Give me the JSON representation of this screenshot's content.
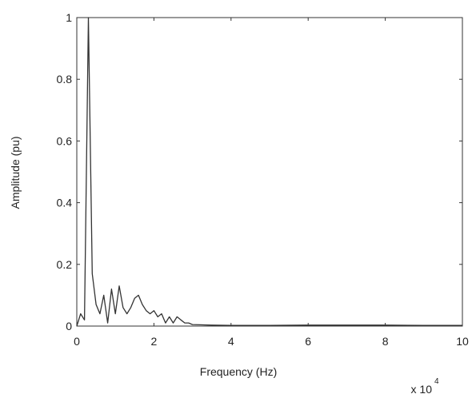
{
  "chart_data": {
    "type": "line",
    "title": "",
    "xlabel": "Frequency (Hz)",
    "ylabel": "Amplitude (pu)",
    "x_multiplier_label": "x 10",
    "x_multiplier_exponent": "4",
    "xlim": [
      0,
      10
    ],
    "ylim": [
      0,
      1
    ],
    "xticks": [
      0,
      2,
      4,
      6,
      8,
      10
    ],
    "yticks": [
      0,
      0.2,
      0.4,
      0.6,
      0.8,
      1
    ],
    "xtick_labels": [
      "0",
      "2",
      "4",
      "6",
      "8",
      "10"
    ],
    "ytick_labels": [
      "0",
      "0.2",
      "0.4",
      "0.6",
      "0.8",
      "1"
    ],
    "grid": false,
    "legend": "none",
    "line_color": "#333333",
    "series": [
      {
        "x": [
          0,
          0.1,
          0.2,
          0.3,
          0.4,
          0.5,
          0.6,
          0.7,
          0.8,
          0.9,
          1.0,
          1.1,
          1.2,
          1.3,
          1.4,
          1.5,
          1.6,
          1.7,
          1.8,
          1.9,
          2.0,
          2.1,
          2.2,
          2.3,
          2.4,
          2.5,
          2.6,
          2.7,
          2.8,
          2.9,
          3.0,
          3.5,
          4.0,
          5.0,
          6.0,
          7.0,
          8.0,
          9.0,
          10.0
        ],
        "y": [
          0,
          0.04,
          0.02,
          1.0,
          0.17,
          0.07,
          0.04,
          0.1,
          0.01,
          0.12,
          0.04,
          0.13,
          0.06,
          0.04,
          0.06,
          0.09,
          0.1,
          0.07,
          0.05,
          0.04,
          0.05,
          0.03,
          0.04,
          0.01,
          0.03,
          0.01,
          0.03,
          0.02,
          0.01,
          0.01,
          0.005,
          0.003,
          0.002,
          0.002,
          0.003,
          0.003,
          0.003,
          0.002,
          0.002
        ]
      }
    ]
  }
}
